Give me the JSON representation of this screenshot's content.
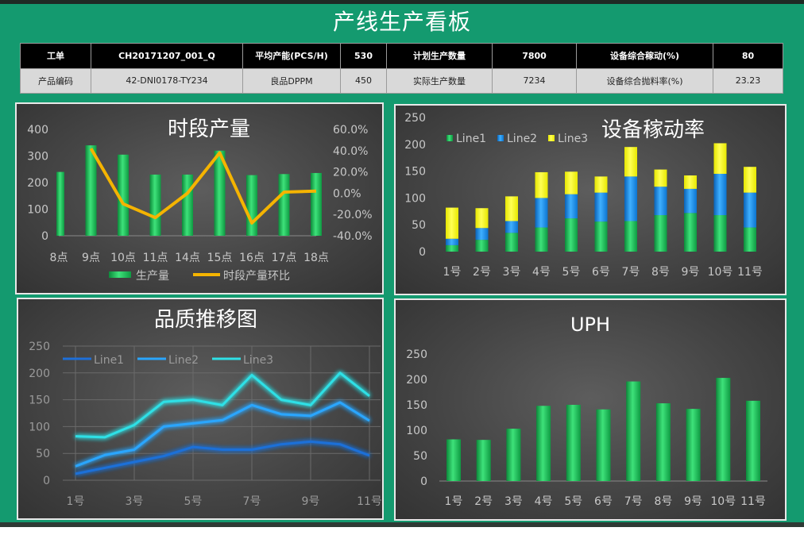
{
  "header": {
    "title": "产线生产看板"
  },
  "info_table": {
    "row1": [
      "工单",
      "CH20171207_001_Q",
      "平均产能(PCS/H)",
      "530",
      "计划生产数量",
      "7800",
      "设备综合稼动(%)",
      "80"
    ],
    "row2": [
      "产品编码",
      "42-DNI0178-TY234",
      "良品DPPM",
      "450",
      "实际生产数量",
      "7234",
      "设备综合抛料率(%)",
      "23.23"
    ]
  },
  "colors": {
    "board": "#149a6f",
    "green": "#22c55e",
    "orange": "#f5b400",
    "blue": "#1e90e8",
    "yellow": "#ffff00"
  },
  "chart_data": [
    {
      "id": "hourly",
      "type": "bar",
      "title": "时段产量",
      "categories": [
        "8点",
        "9点",
        "10点",
        "11点",
        "14点",
        "15点",
        "16点",
        "17点",
        "18点"
      ],
      "series": [
        {
          "name": "生产量",
          "type": "bar",
          "axis": "left",
          "values": [
            240,
            340,
            305,
            230,
            230,
            320,
            228,
            232,
            236
          ]
        },
        {
          "name": "时段产量环比",
          "type": "line",
          "axis": "right",
          "values": [
            null,
            42,
            -10,
            -23,
            0,
            38,
            -28,
            1,
            2
          ]
        }
      ],
      "y_left": {
        "range": [
          0,
          400
        ],
        "ticks": [
          "0",
          "100",
          "200",
          "300",
          "400"
        ]
      },
      "y_right": {
        "range": [
          -40,
          60
        ],
        "ticks": [
          "-40.0%",
          "-20.0%",
          "0.0%",
          "20.0%",
          "40.0%",
          "60.0%"
        ]
      },
      "legend": "bottom"
    },
    {
      "id": "oee",
      "type": "bar",
      "stacked": true,
      "title": "设备稼动率",
      "categories": [
        "1号",
        "2号",
        "3号",
        "4号",
        "5号",
        "6号",
        "7号",
        "8号",
        "9号",
        "10号",
        "11号"
      ],
      "series": [
        {
          "name": "Line1",
          "values": [
            12,
            22,
            35,
            45,
            62,
            56,
            57,
            68,
            72,
            68,
            45
          ]
        },
        {
          "name": "Line2",
          "values": [
            12,
            22,
            22,
            55,
            45,
            54,
            83,
            53,
            45,
            77,
            65
          ]
        },
        {
          "name": "Line3",
          "values": [
            58,
            37,
            46,
            48,
            42,
            30,
            55,
            32,
            25,
            57,
            48
          ]
        }
      ],
      "y_range": [
        0,
        250
      ],
      "y_ticks": [
        "0",
        "50",
        "100",
        "150",
        "200",
        "250"
      ],
      "legend": "top"
    },
    {
      "id": "quality",
      "type": "line",
      "title": "品质推移图",
      "categories": [
        "1号",
        "2号",
        "3号",
        "4号",
        "5号",
        "6号",
        "7号",
        "8号",
        "9号",
        "10号",
        "11号"
      ],
      "x_tick_labels": [
        "1号",
        "",
        "3号",
        "",
        "5号",
        "",
        "7号",
        "",
        "9号",
        "",
        "11号"
      ],
      "series": [
        {
          "name": "Line1",
          "values": [
            12,
            23,
            34,
            45,
            62,
            57,
            57,
            67,
            72,
            67,
            46
          ]
        },
        {
          "name": "Line2",
          "values": [
            26,
            47,
            57,
            100,
            106,
            112,
            140,
            123,
            120,
            145,
            111
          ]
        },
        {
          "name": "Line3",
          "values": [
            82,
            80,
            103,
            146,
            150,
            140,
            196,
            150,
            140,
            200,
            157
          ]
        }
      ],
      "y_range": [
        0,
        250
      ],
      "y_ticks": [
        "0",
        "50",
        "100",
        "150",
        "200",
        "250"
      ],
      "legend": "top"
    },
    {
      "id": "uph",
      "type": "bar",
      "title": "UPH",
      "categories": [
        "1号",
        "2号",
        "3号",
        "4号",
        "5号",
        "6号",
        "7号",
        "8号",
        "9号",
        "10号",
        "11号"
      ],
      "values": [
        82,
        81,
        103,
        148,
        150,
        141,
        196,
        153,
        142,
        203,
        158
      ],
      "y_range": [
        0,
        250
      ],
      "y_ticks": [
        "0",
        "50",
        "100",
        "150",
        "200",
        "250"
      ]
    }
  ]
}
